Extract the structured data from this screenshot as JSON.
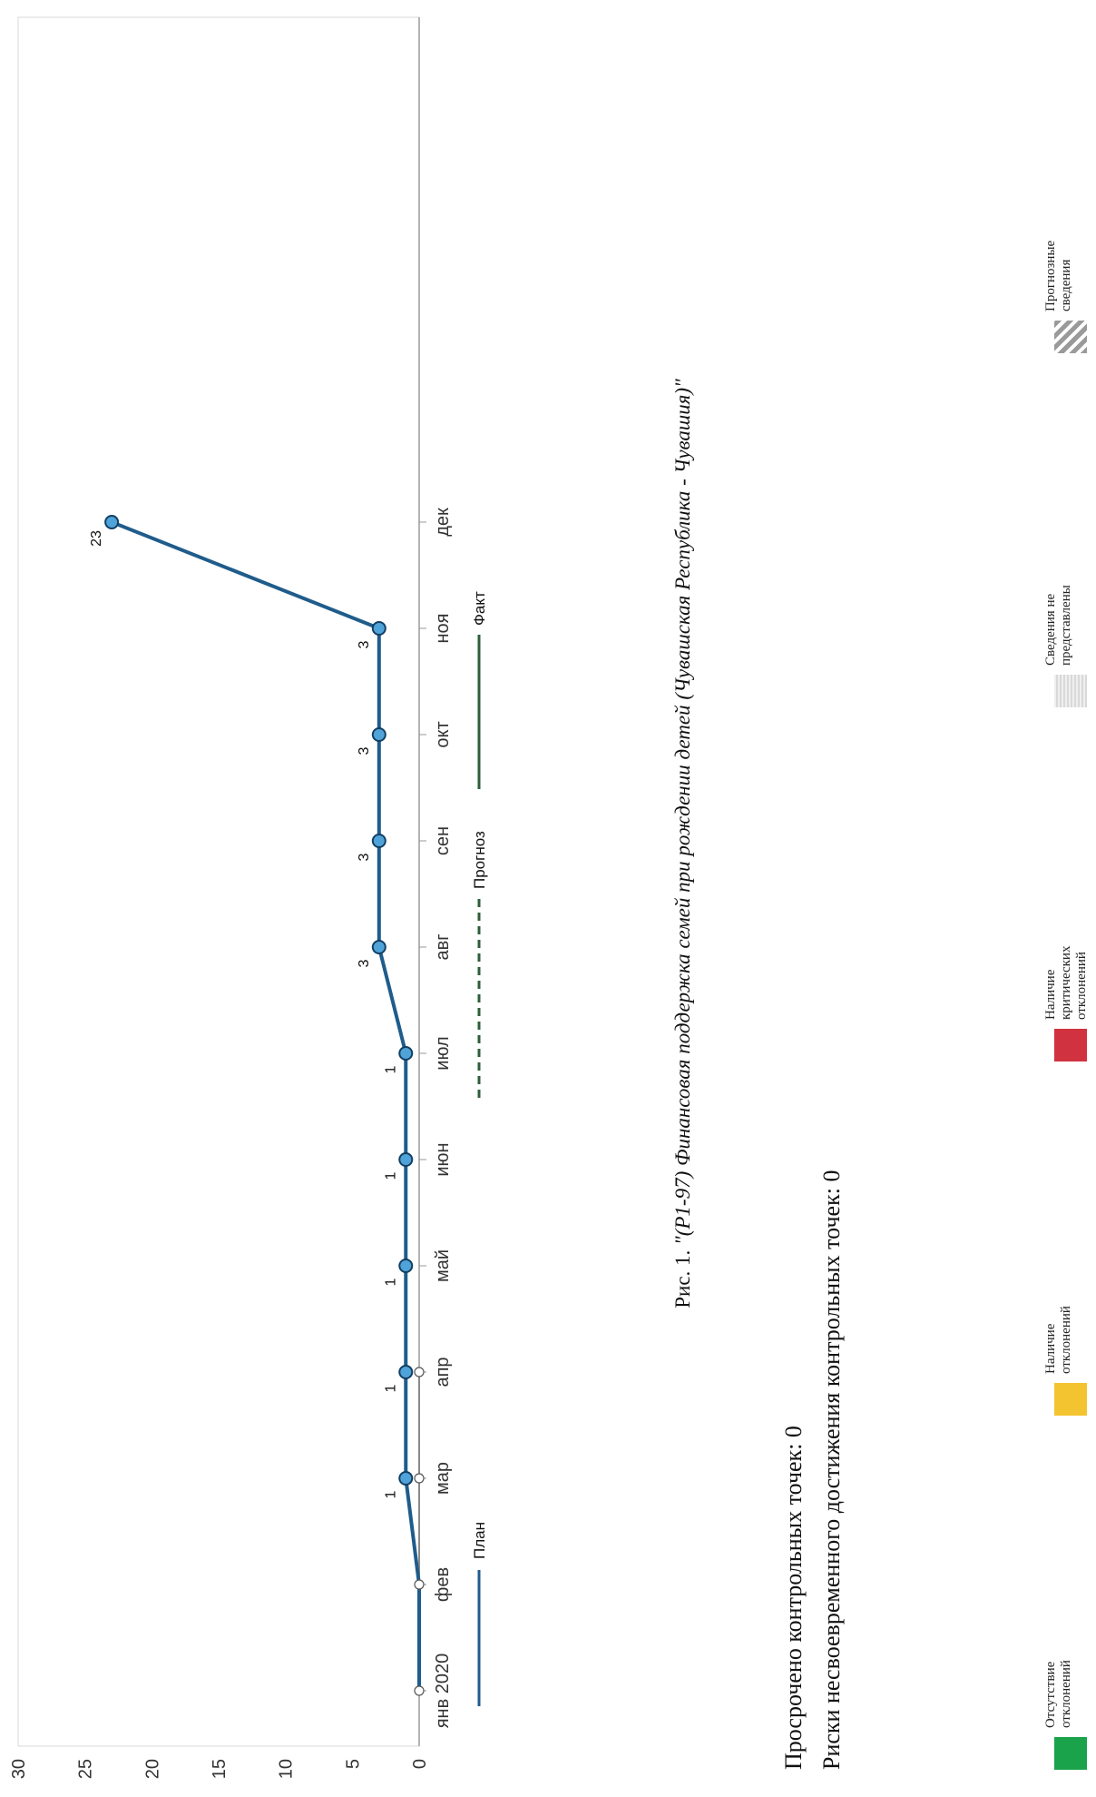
{
  "chart_data": {
    "type": "line",
    "categories": [
      "янв 2020",
      "фев",
      "мар",
      "апр",
      "май",
      "июн",
      "июл",
      "авг",
      "сен",
      "окт",
      "ноя",
      "дек"
    ],
    "series": [
      {
        "name": "План",
        "values": [
          0,
          0,
          1,
          1,
          1,
          1,
          1,
          3,
          3,
          3,
          3,
          23
        ],
        "color": "#1f5c8b",
        "marker_color": "#4fa3d9",
        "labeled_from_index": 2
      },
      {
        "name": "Факт",
        "values": [
          0,
          0,
          0,
          0,
          null,
          null,
          null,
          null,
          null,
          null,
          null,
          null
        ],
        "color": "#2d5e3a"
      }
    ],
    "legend": [
      "План",
      "Прогноз",
      "Факт"
    ],
    "legend_placement": "bottom",
    "ylim": [
      0,
      30
    ],
    "yticks": [
      0,
      5,
      10,
      15,
      20,
      25,
      30
    ],
    "grid": false
  },
  "caption": {
    "prefix": "Рис. 1.",
    "title": "\"(P1-97) Финансовая поддержка семей при рождении детей (Чувашская Республика - Чувашия)\""
  },
  "notes": {
    "overdue": "Просрочено контрольных точек: 0",
    "risks": "Риски несвоевременного достижения контрольных точек: 0"
  },
  "status_legend": [
    {
      "label": "Отсутствие отклонений",
      "color": "#1aa34a"
    },
    {
      "label": "Наличие отклонений",
      "color": "#f4c430"
    },
    {
      "label": "Наличие критических отклонений",
      "color": "#d1323f"
    },
    {
      "label": "Сведения не представлены",
      "color": "#d9d9d9"
    },
    {
      "label": "Прогнозные сведения",
      "color": "#9a9a9a"
    }
  ]
}
